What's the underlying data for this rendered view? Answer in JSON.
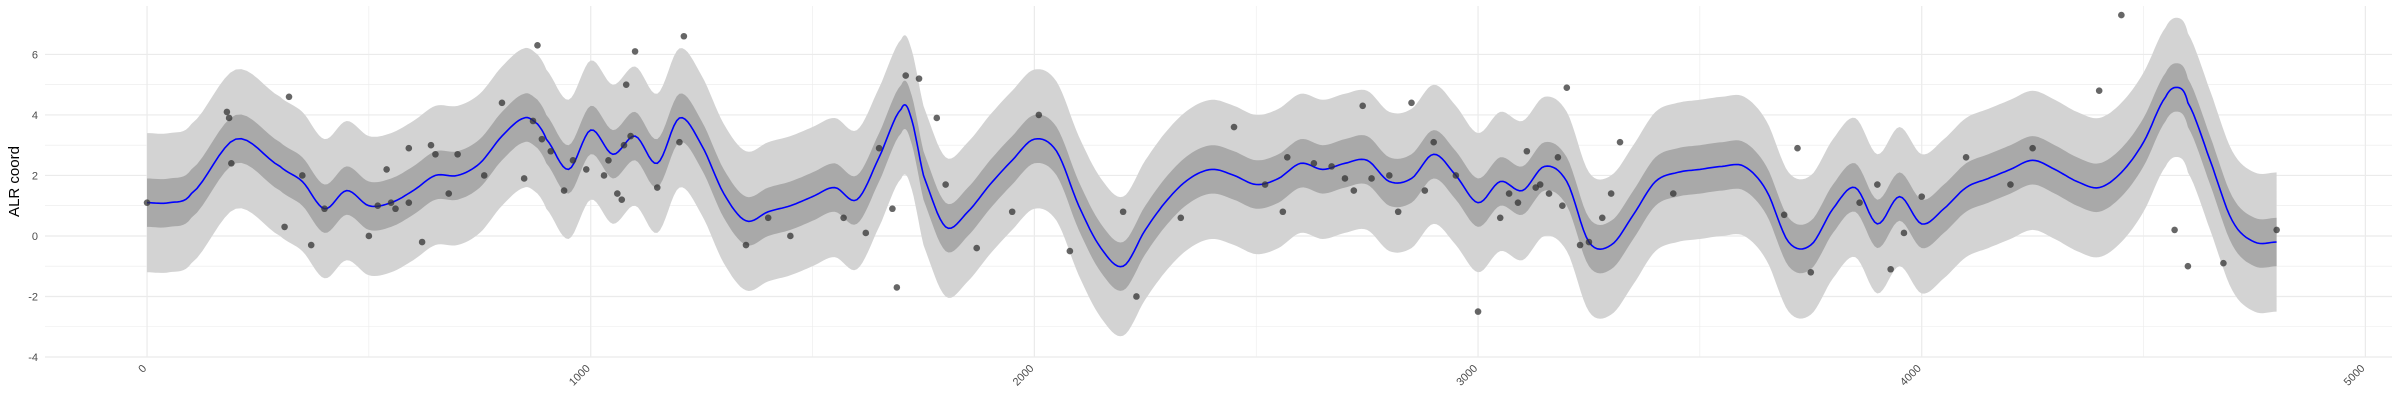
{
  "chart_data": {
    "type": "line",
    "xlabel": "",
    "ylabel": "ALR coord",
    "xlim": [
      -230,
      5060
    ],
    "ylim": [
      -4,
      7.6
    ],
    "x_ticks": [
      0,
      1000,
      2000,
      3000,
      4000,
      5000
    ],
    "y_ticks": [
      -4,
      -2,
      0,
      2,
      4,
      6
    ],
    "grid": true,
    "legend": "none",
    "colors": {
      "mean_line": "#0000ff",
      "inner_band": "#a9a9a9",
      "outer_band": "#d3d3d3",
      "points": "#333333",
      "grid": "#ebebeb"
    },
    "mean_curve": {
      "x": [
        0,
        50,
        100,
        200,
        300,
        350,
        400,
        450,
        500,
        550,
        600,
        650,
        700,
        750,
        800,
        850,
        880,
        900,
        950,
        1000,
        1050,
        1100,
        1150,
        1200,
        1250,
        1300,
        1350,
        1400,
        1450,
        1500,
        1550,
        1600,
        1650,
        1700,
        1720,
        1750,
        1800,
        1850,
        1900,
        1950,
        2000,
        2050,
        2100,
        2150,
        2200,
        2250,
        2300,
        2350,
        2400,
        2450,
        2500,
        2550,
        2600,
        2650,
        2700,
        2750,
        2800,
        2850,
        2900,
        2950,
        3000,
        3050,
        3100,
        3150,
        3200,
        3250,
        3300,
        3350,
        3400,
        3450,
        3500,
        3550,
        3600,
        3650,
        3700,
        3750,
        3800,
        3850,
        3900,
        3950,
        4000,
        4050,
        4100,
        4150,
        4200,
        4250,
        4300,
        4350,
        4400,
        4450,
        4500,
        4550,
        4580,
        4600,
        4650,
        4700,
        4750,
        4800
      ],
      "y": [
        1.1,
        1.1,
        1.4,
        3.2,
        2.3,
        1.8,
        0.9,
        1.5,
        1.0,
        1.1,
        1.5,
        2.0,
        2.0,
        2.4,
        3.3,
        3.9,
        3.7,
        3.2,
        2.2,
        3.5,
        2.7,
        3.3,
        2.4,
        3.9,
        3.0,
        1.4,
        0.5,
        0.8,
        1.0,
        1.3,
        1.6,
        1.2,
        2.6,
        4.2,
        4.0,
        2.0,
        0.3,
        0.8,
        1.7,
        2.5,
        3.2,
        2.8,
        1.0,
        -0.4,
        -1.0,
        0.2,
        1.2,
        1.9,
        2.2,
        2.0,
        1.7,
        1.9,
        2.4,
        2.2,
        2.4,
        2.5,
        1.8,
        1.9,
        2.7,
        2.0,
        1.1,
        1.8,
        1.5,
        2.3,
        1.8,
        -0.2,
        -0.3,
        0.7,
        1.8,
        2.1,
        2.2,
        2.3,
        2.3,
        1.5,
        -0.2,
        -0.3,
        0.9,
        1.6,
        0.4,
        1.3,
        0.4,
        0.9,
        1.6,
        1.9,
        2.2,
        2.5,
        2.2,
        1.8,
        1.6,
        2.1,
        3.1,
        4.6,
        4.9,
        4.4,
        2.5,
        0.5,
        -0.2,
        -0.2
      ]
    },
    "inner_band_halfwidth": 0.8,
    "outer_band_halfwidth": 2.3,
    "points": {
      "x": [
        0,
        180,
        185,
        190,
        310,
        320,
        350,
        370,
        400,
        500,
        520,
        540,
        550,
        560,
        590,
        590,
        620,
        640,
        650,
        680,
        700,
        760,
        800,
        850,
        870,
        880,
        890,
        910,
        940,
        960,
        990,
        1030,
        1040,
        1060,
        1070,
        1075,
        1080,
        1090,
        1100,
        1150,
        1200,
        1210,
        1350,
        1400,
        1450,
        1570,
        1620,
        1650,
        1680,
        1690,
        1710,
        1740,
        1780,
        1800,
        1870,
        1950,
        2010,
        2080,
        2200,
        2230,
        2330,
        2450,
        2520,
        2560,
        2570,
        2630,
        2670,
        2700,
        2720,
        2740,
        2760,
        2800,
        2820,
        2850,
        2880,
        2900,
        2950,
        3000,
        3050,
        3070,
        3090,
        3110,
        3130,
        3140,
        3160,
        3180,
        3190,
        3200,
        3230,
        3250,
        3280,
        3300,
        3320,
        3440,
        3690,
        3720,
        3750,
        3860,
        3900,
        3930,
        3960,
        4000,
        4100,
        4200,
        4250,
        4400,
        4450,
        4570,
        4600,
        4680,
        4800
      ],
      "y": [
        1.1,
        4.1,
        3.9,
        2.4,
        0.3,
        4.6,
        2.0,
        -0.3,
        0.9,
        0.0,
        1.0,
        2.2,
        1.1,
        0.9,
        2.9,
        1.1,
        -0.2,
        3.0,
        2.7,
        1.4,
        2.7,
        2.0,
        4.4,
        1.9,
        3.8,
        6.3,
        3.2,
        2.8,
        1.5,
        2.5,
        2.2,
        2.0,
        2.5,
        1.4,
        1.2,
        3.0,
        5.0,
        3.3,
        6.1,
        1.6,
        3.1,
        6.6,
        -0.3,
        0.6,
        0.0,
        0.6,
        0.1,
        2.9,
        0.9,
        -1.7,
        5.3,
        5.2,
        3.9,
        1.7,
        -0.4,
        0.8,
        4.0,
        -0.5,
        0.8,
        -2.0,
        0.6,
        3.6,
        1.7,
        0.8,
        2.6,
        2.4,
        2.3,
        1.9,
        1.5,
        4.3,
        1.9,
        2.0,
        0.8,
        4.4,
        1.5,
        3.1,
        2.0,
        -2.5,
        0.6,
        1.4,
        1.1,
        2.8,
        1.6,
        1.7,
        1.4,
        2.6,
        1.0,
        4.9,
        -0.3,
        -0.2,
        0.6,
        1.4,
        3.1,
        1.4,
        0.7,
        2.9,
        -1.2,
        1.1,
        1.7,
        -1.1,
        0.1,
        1.3,
        2.6,
        1.7,
        2.9,
        4.8,
        7.3,
        0.2,
        -1.0,
        -0.9,
        0.2
      ]
    }
  }
}
